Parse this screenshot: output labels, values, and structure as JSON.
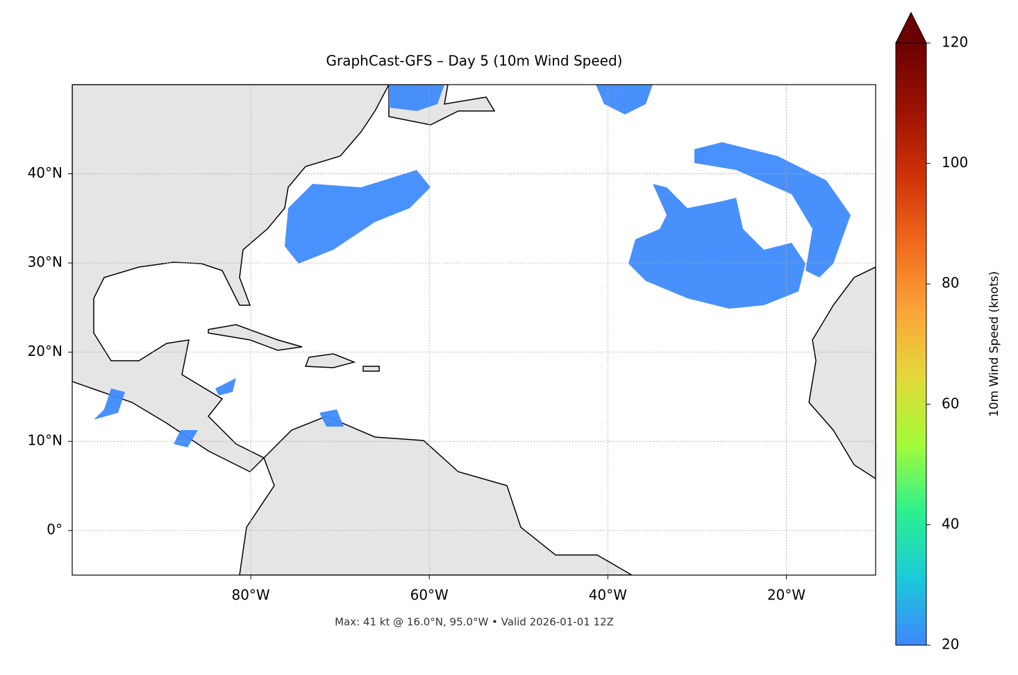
{
  "chart_data": {
    "type": "map",
    "title": "GraphCast-GFS – Day 5 (10m Wind Speed)",
    "footer": "Max: 41 kt @ 16.0°N, 95.0°W • Valid 2026-01-01 12Z",
    "xlim": [
      -100,
      -10
    ],
    "ylim": [
      -5,
      50
    ],
    "xticks": [
      {
        "value": -80,
        "label": "80°W"
      },
      {
        "value": -60,
        "label": "60°W"
      },
      {
        "value": -40,
        "label": "40°W"
      },
      {
        "value": -20,
        "label": "20°W"
      }
    ],
    "yticks": [
      {
        "value": 0,
        "label": "0°"
      },
      {
        "value": 10,
        "label": "10°N"
      },
      {
        "value": 20,
        "label": "20°N"
      },
      {
        "value": 30,
        "label": "30°N"
      },
      {
        "value": 40,
        "label": "40°N"
      }
    ],
    "grid": true,
    "colorbar": {
      "label": "10m Wind Speed (knots)",
      "lim": [
        20,
        120
      ],
      "ticks": [
        20,
        40,
        60,
        80,
        100,
        120
      ],
      "colors": [
        "#3f86fb",
        "#1bc9d9",
        "#2cf18e",
        "#a4fb3a",
        "#e3d93a",
        "#fca43a",
        "#f06a1c",
        "#cf3308",
        "#9c1201",
        "#6b0101"
      ]
    }
  }
}
